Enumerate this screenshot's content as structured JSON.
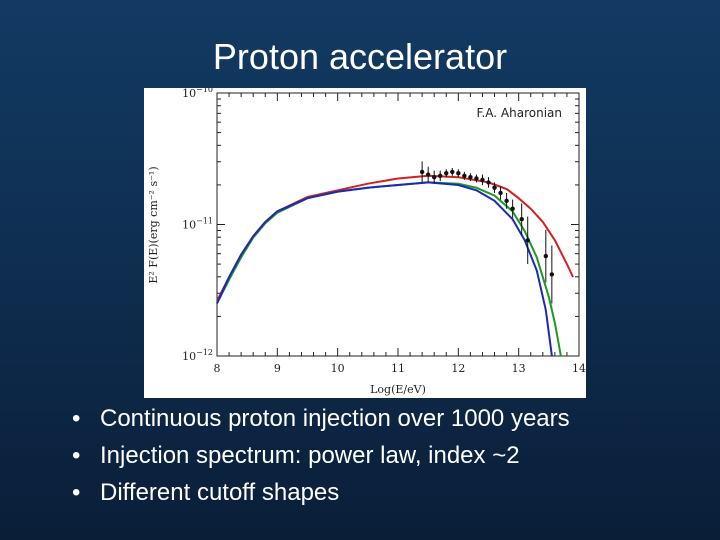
{
  "slide": {
    "title": "Proton accelerator",
    "credit": "F.A. Aharonian",
    "bullet_glyph": "•",
    "bullets": [
      "Continuous proton injection over 1000 years",
      "Injection spectrum: power law, index ~2",
      "Different cutoff shapes"
    ]
  },
  "chart_data": {
    "type": "line",
    "title": "",
    "xlabel": "Log(E/eV)",
    "ylabel": "E² F(E)(erg cm⁻² s⁻¹)",
    "xlim": [
      8,
      14
    ],
    "ylim": [
      -12,
      -10
    ],
    "y_log_scale": true,
    "x_ticks": [
      "8",
      "9",
      "10",
      "11",
      "12",
      "13",
      "14"
    ],
    "y_ticks": [
      {
        "value": -10,
        "base": "10",
        "exp": "−10"
      },
      {
        "value": -11,
        "base": "10",
        "exp": "−11"
      },
      {
        "value": -12,
        "base": "10",
        "exp": "−12"
      }
    ],
    "series": [
      {
        "color": "#d42020",
        "points": [
          [
            8,
            -11.58
          ],
          [
            8.2,
            -11.4
          ],
          [
            8.4,
            -11.23
          ],
          [
            8.6,
            -11.09
          ],
          [
            8.8,
            -10.98
          ],
          [
            9,
            -10.9
          ],
          [
            9.5,
            -10.79
          ],
          [
            10,
            -10.74
          ],
          [
            10.5,
            -10.69
          ],
          [
            11,
            -10.65
          ],
          [
            11.5,
            -10.63
          ],
          [
            12,
            -10.64
          ],
          [
            12.5,
            -10.68
          ],
          [
            12.8,
            -10.73
          ],
          [
            13,
            -10.8
          ],
          [
            13.2,
            -10.88
          ],
          [
            13.4,
            -10.98
          ],
          [
            13.6,
            -11.12
          ],
          [
            13.8,
            -11.3
          ],
          [
            13.9,
            -11.4
          ]
        ]
      },
      {
        "color": "#1c9c1c",
        "points": [
          [
            8,
            -11.6
          ],
          [
            8.2,
            -11.42
          ],
          [
            8.4,
            -11.25
          ],
          [
            8.6,
            -11.1
          ],
          [
            8.8,
            -10.99
          ],
          [
            9,
            -10.91
          ],
          [
            9.5,
            -10.8
          ],
          [
            10,
            -10.75
          ],
          [
            10.5,
            -10.72
          ],
          [
            11,
            -10.7
          ],
          [
            11.5,
            -10.68
          ],
          [
            12,
            -10.69
          ],
          [
            12.3,
            -10.72
          ],
          [
            12.6,
            -10.78
          ],
          [
            12.9,
            -10.9
          ],
          [
            13.1,
            -11.05
          ],
          [
            13.3,
            -11.25
          ],
          [
            13.5,
            -11.55
          ],
          [
            13.6,
            -11.75
          ],
          [
            13.7,
            -12.0
          ]
        ]
      },
      {
        "color": "#1a2ab8",
        "points": [
          [
            8,
            -11.6
          ],
          [
            8.2,
            -11.4
          ],
          [
            8.4,
            -11.23
          ],
          [
            8.6,
            -11.09
          ],
          [
            8.8,
            -10.98
          ],
          [
            9,
            -10.9
          ],
          [
            9.5,
            -10.8
          ],
          [
            10,
            -10.75
          ],
          [
            10.5,
            -10.72
          ],
          [
            11,
            -10.7
          ],
          [
            11.5,
            -10.68
          ],
          [
            12,
            -10.7
          ],
          [
            12.3,
            -10.74
          ],
          [
            12.6,
            -10.82
          ],
          [
            12.9,
            -10.96
          ],
          [
            13.1,
            -11.12
          ],
          [
            13.3,
            -11.35
          ],
          [
            13.45,
            -11.65
          ],
          [
            13.55,
            -12.0
          ]
        ]
      }
    ],
    "data_points": [
      {
        "x": 11.4,
        "y": -10.6,
        "err": 0.08
      },
      {
        "x": 11.5,
        "y": -10.62,
        "err": 0.06
      },
      {
        "x": 11.6,
        "y": -10.64,
        "err": 0.05
      },
      {
        "x": 11.7,
        "y": -10.63,
        "err": 0.04
      },
      {
        "x": 11.8,
        "y": -10.61,
        "err": 0.03
      },
      {
        "x": 11.9,
        "y": -10.6,
        "err": 0.03
      },
      {
        "x": 12.0,
        "y": -10.61,
        "err": 0.03
      },
      {
        "x": 12.1,
        "y": -10.63,
        "err": 0.03
      },
      {
        "x": 12.2,
        "y": -10.64,
        "err": 0.03
      },
      {
        "x": 12.3,
        "y": -10.65,
        "err": 0.03
      },
      {
        "x": 12.4,
        "y": -10.66,
        "err": 0.04
      },
      {
        "x": 12.5,
        "y": -10.68,
        "err": 0.04
      },
      {
        "x": 12.6,
        "y": -10.72,
        "err": 0.04
      },
      {
        "x": 12.7,
        "y": -10.76,
        "err": 0.05
      },
      {
        "x": 12.8,
        "y": -10.82,
        "err": 0.06
      },
      {
        "x": 12.9,
        "y": -10.88,
        "err": 0.07
      },
      {
        "x": 13.05,
        "y": -10.96,
        "err": 0.12
      },
      {
        "x": 13.15,
        "y": -11.12,
        "err": 0.18
      },
      {
        "x": 13.45,
        "y": -11.24,
        "err": 0.2
      },
      {
        "x": 13.55,
        "y": -11.38,
        "err": 0.22
      }
    ]
  }
}
